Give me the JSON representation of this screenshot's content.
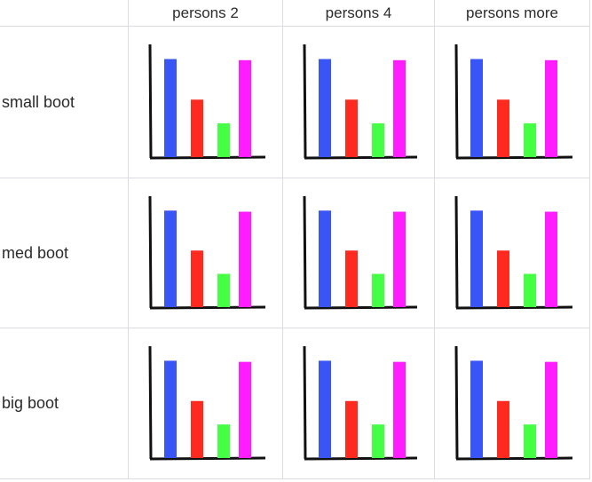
{
  "columns": [
    "persons 2",
    "persons 4",
    "persons more"
  ],
  "rows": [
    "small boot",
    "med boot",
    "big boot"
  ],
  "colors": [
    "#3a55f5",
    "#ff2a1f",
    "#44ff44",
    "#ff1cff"
  ],
  "chart_data": [
    {
      "type": "bar",
      "row": "small boot",
      "column": "persons 2",
      "values": [
        0.87,
        0.51,
        0.3,
        0.86
      ]
    },
    {
      "type": "bar",
      "row": "small boot",
      "column": "persons 4",
      "values": [
        0.87,
        0.51,
        0.3,
        0.86
      ]
    },
    {
      "type": "bar",
      "row": "small boot",
      "column": "persons more",
      "values": [
        0.87,
        0.51,
        0.3,
        0.86
      ]
    },
    {
      "type": "bar",
      "row": "med boot",
      "column": "persons 2",
      "values": [
        0.87,
        0.51,
        0.3,
        0.86
      ]
    },
    {
      "type": "bar",
      "row": "med boot",
      "column": "persons 4",
      "values": [
        0.87,
        0.51,
        0.3,
        0.86
      ]
    },
    {
      "type": "bar",
      "row": "med boot",
      "column": "persons more",
      "values": [
        0.87,
        0.51,
        0.3,
        0.86
      ]
    },
    {
      "type": "bar",
      "row": "big boot",
      "column": "persons 2",
      "values": [
        0.87,
        0.51,
        0.3,
        0.86
      ]
    },
    {
      "type": "bar",
      "row": "big boot",
      "column": "persons 4",
      "values": [
        0.87,
        0.51,
        0.3,
        0.86
      ]
    },
    {
      "type": "bar",
      "row": "big boot",
      "column": "persons more",
      "values": [
        0.87,
        0.51,
        0.3,
        0.86
      ]
    }
  ]
}
